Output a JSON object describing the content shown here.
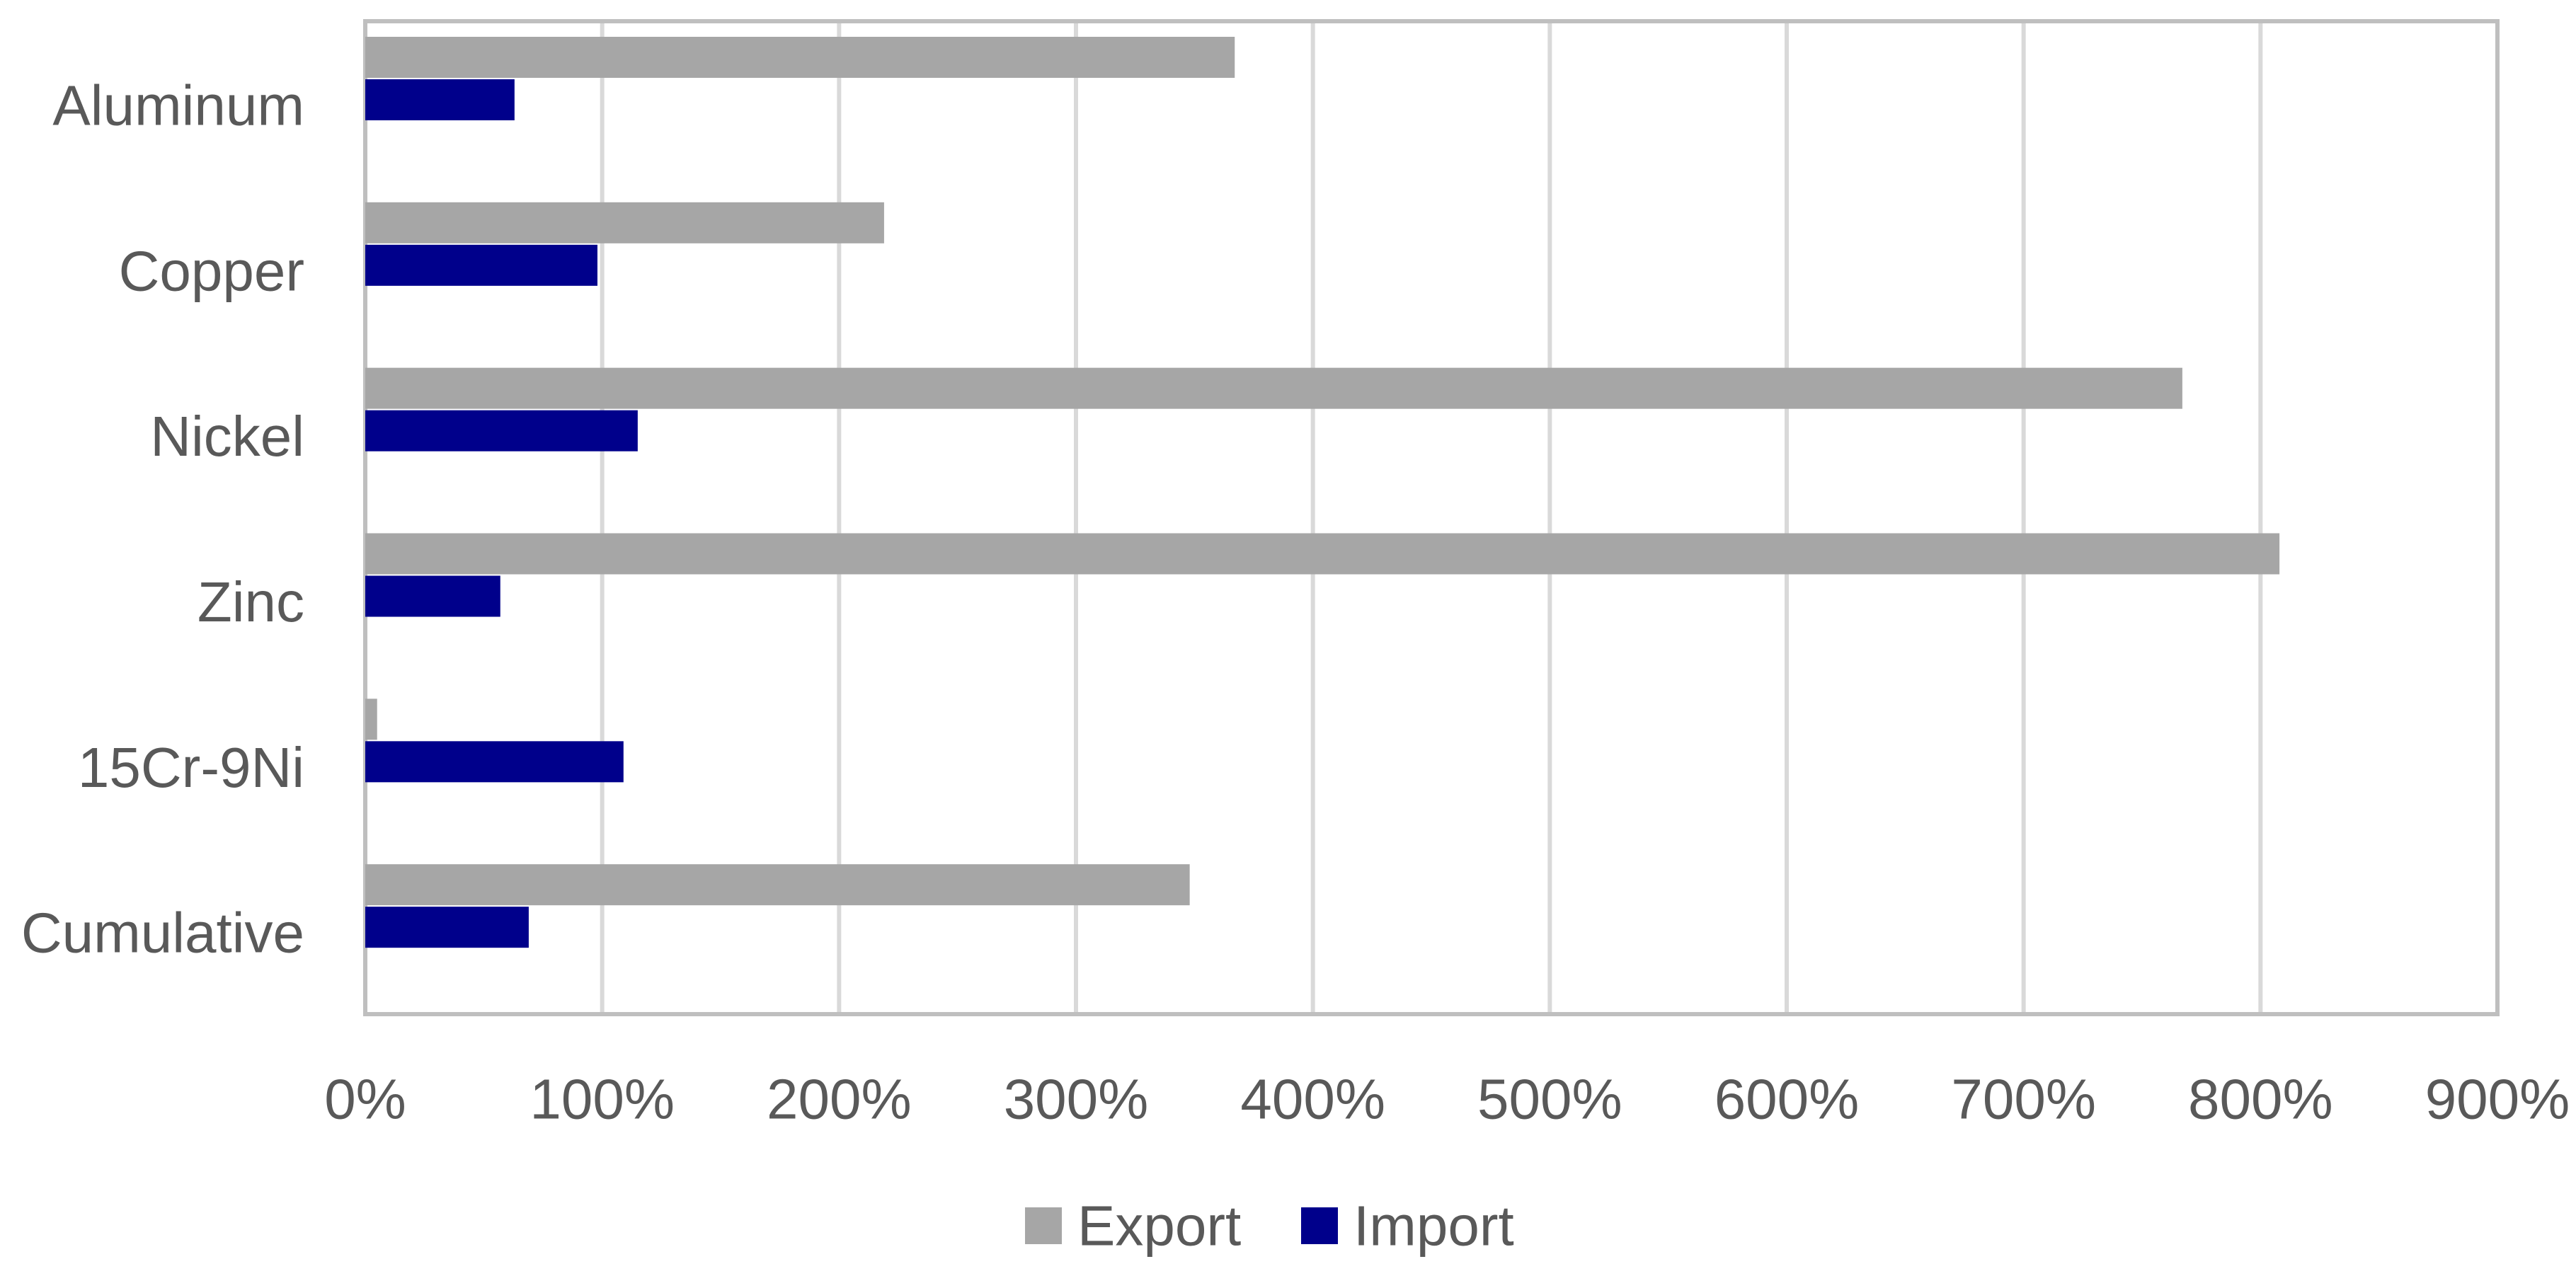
{
  "chart_data": {
    "type": "bar",
    "orientation": "horizontal",
    "categories": [
      "Aluminum",
      "Copper",
      "Nickel",
      "Zinc",
      "15Cr-9Ni",
      "Cumulative"
    ],
    "series": [
      {
        "name": "Export",
        "color": "#A6A6A6",
        "values": [
          367,
          219,
          767,
          808,
          5,
          348
        ]
      },
      {
        "name": "Import",
        "color": "#00008B",
        "values": [
          63,
          98,
          115,
          57,
          109,
          69
        ]
      }
    ],
    "x_ticks": [
      "0%",
      "100%",
      "200%",
      "300%",
      "400%",
      "500%",
      "600%",
      "700%",
      "800%",
      "900%"
    ],
    "xlim": [
      0,
      900
    ],
    "value_unit": "%",
    "grid": true,
    "legend_position": "bottom",
    "colors": {
      "grid": "#D9D9D9",
      "frame": "#BFBFBF",
      "text": "#595959"
    }
  }
}
